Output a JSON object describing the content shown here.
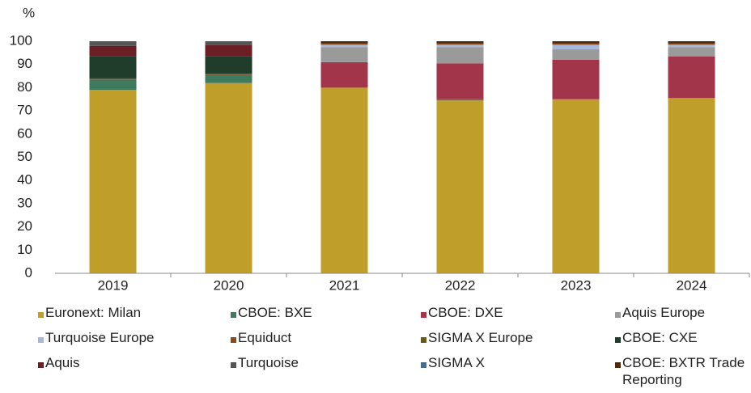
{
  "chart_data": {
    "type": "stacked_bar",
    "y_label": "%",
    "categories": [
      "2019",
      "2020",
      "2021",
      "2022",
      "2023",
      "2024"
    ],
    "series": [
      {
        "name": "Euronext: Milan",
        "color": "#bf9f2a",
        "values": [
          79,
          82,
          80,
          74.5,
          75,
          75.5
        ]
      },
      {
        "name": "CBOE: BXE",
        "color": "#3d7a5e",
        "values": [
          4.5,
          3.5,
          0,
          0.5,
          0,
          0
        ]
      },
      {
        "name": "CBOE: DXE",
        "color": "#a3354a",
        "values": [
          0,
          0,
          11,
          15.5,
          17,
          18
        ]
      },
      {
        "name": "Aquis Europe",
        "color": "#9a9a9a",
        "values": [
          0,
          0,
          6.5,
          7,
          4.5,
          4
        ]
      },
      {
        "name": "Turquoise Europe",
        "color": "#a8b8d8",
        "values": [
          0,
          0,
          1,
          1,
          2,
          1
        ]
      },
      {
        "name": "Equiduct",
        "color": "#8a4a1a",
        "values": [
          0.5,
          0.5,
          0.5,
          0.5,
          0.5,
          0.5
        ]
      },
      {
        "name": "SIGMA X Europe",
        "color": "#6b5a20",
        "values": [
          0,
          0,
          0,
          0,
          0,
          0
        ]
      },
      {
        "name": "CBOE: CXE",
        "color": "#1f3d2a",
        "values": [
          9.5,
          7.5,
          0,
          0,
          0,
          0
        ]
      },
      {
        "name": "Aquis",
        "color": "#6b1f25",
        "values": [
          4.5,
          5,
          0,
          0,
          0,
          0
        ]
      },
      {
        "name": "Turquoise",
        "color": "#555555",
        "values": [
          2,
          1.5,
          0,
          0,
          0,
          0
        ]
      },
      {
        "name": "SIGMA X",
        "color": "#4a6a8a",
        "values": [
          0,
          0,
          0,
          0,
          0,
          0
        ]
      },
      {
        "name": "CBOE: BXTR Trade Reporting",
        "color": "#4a2a10",
        "values": [
          0,
          0,
          1,
          1,
          1,
          1
        ]
      }
    ],
    "ylim": [
      0,
      100
    ],
    "yticks": [
      0,
      10,
      20,
      30,
      40,
      50,
      60,
      70,
      80,
      90,
      100
    ],
    "grid": false
  }
}
